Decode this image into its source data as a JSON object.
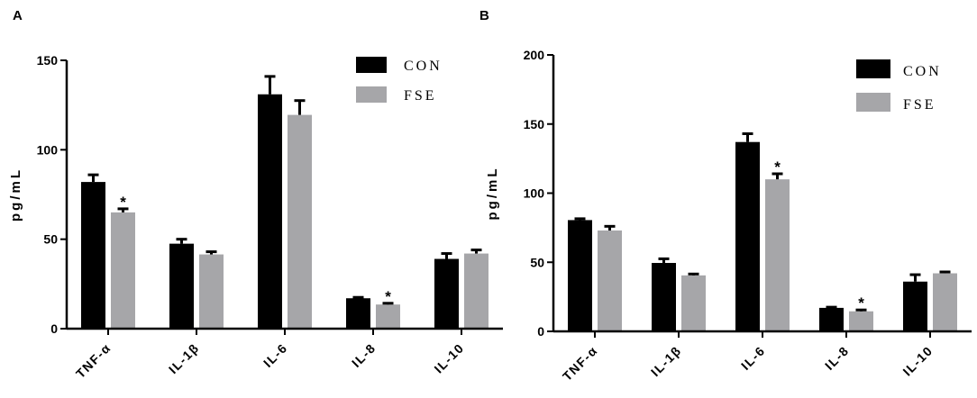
{
  "chart_data": [
    {
      "panel": "A",
      "type": "bar",
      "categories": [
        "TNF-α",
        "IL-1β",
        "IL-6",
        "IL-8",
        "IL-10"
      ],
      "ylabel": "pg/mL",
      "ylim": [
        0,
        150
      ],
      "yticks": [
        0,
        50,
        100,
        150
      ],
      "colors": {
        "CON": "#000000",
        "FSE": "#a6a6a9"
      },
      "series": [
        {
          "name": "CON",
          "values": [
            82,
            47.5,
            131,
            17,
            39
          ],
          "errors": [
            4,
            2.5,
            10,
            0.5,
            3
          ]
        },
        {
          "name": "FSE",
          "values": [
            65,
            41.5,
            119.5,
            13.5,
            42
          ],
          "errors": [
            2,
            1.5,
            8,
            0.7,
            2
          ]
        }
      ],
      "significance": [
        {
          "series": "FSE",
          "category": "TNF-α",
          "mark": "*"
        },
        {
          "series": "FSE",
          "category": "IL-8",
          "mark": "*"
        }
      ],
      "legend_position": "top-right"
    },
    {
      "panel": "B",
      "type": "bar",
      "categories": [
        "TNF-α",
        "IL-1β",
        "IL-6",
        "IL-8",
        "IL-10"
      ],
      "ylabel": "pg/mL",
      "ylim": [
        0,
        200
      ],
      "yticks": [
        0,
        50,
        100,
        150,
        200
      ],
      "colors": {
        "CON": "#000000",
        "FSE": "#a6a6a9"
      },
      "series": [
        {
          "name": "CON",
          "values": [
            80.5,
            49.5,
            137,
            17,
            36
          ],
          "errors": [
            1,
            3,
            6,
            0.5,
            5
          ]
        },
        {
          "name": "FSE",
          "values": [
            73,
            40.5,
            110,
            14.5,
            42
          ],
          "errors": [
            3,
            1,
            4,
            1,
            1
          ]
        }
      ],
      "significance": [
        {
          "series": "FSE",
          "category": "IL-6",
          "mark": "*"
        },
        {
          "series": "FSE",
          "category": "IL-8",
          "mark": "*"
        }
      ],
      "legend_position": "top-right"
    }
  ]
}
